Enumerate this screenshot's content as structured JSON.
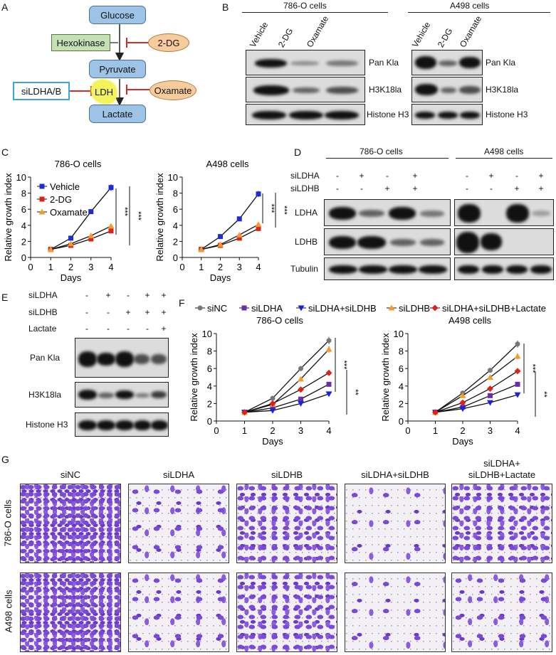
{
  "panels": {
    "A": "A",
    "B": "B",
    "C": "C",
    "D": "D",
    "E": "E",
    "F": "F",
    "G": "G"
  },
  "diagram": {
    "glucose": "Glucose",
    "hexokinase": "Hexokinase",
    "two_dg": "2-DG",
    "pyruvate": "Pyruvate",
    "ldh": "LDH",
    "siLDHAB": "siLDHA/B",
    "oxamate": "Oxamate",
    "lactate": "Lactate"
  },
  "blotB": {
    "cell_786": "786-O cells",
    "cell_a498": "A498 cells",
    "lanes": [
      "Vehicle",
      "2-DG",
      "Oxamate"
    ],
    "rows": [
      "Pan Kla",
      "H3K18la",
      "Histone H3"
    ]
  },
  "blotD": {
    "cell_786": "786-O cells",
    "cell_a498": "A498 cells",
    "cond": [
      "siLDHA",
      "siLDHB"
    ],
    "signs": [
      [
        "-",
        "+",
        "-",
        "+"
      ],
      [
        "-",
        "-",
        "+",
        "+"
      ]
    ],
    "rows": [
      "LDHA",
      "LDHB",
      "Tubulin"
    ]
  },
  "blotE": {
    "cond": [
      "siLDHA",
      "siLDHB",
      "Lactate"
    ],
    "signs": [
      [
        "-",
        "+",
        "-",
        "+",
        "+"
      ],
      [
        "-",
        "-",
        "+",
        "+",
        "+"
      ],
      [
        "-",
        "-",
        "-",
        "-",
        "+"
      ]
    ],
    "rows": [
      "Pan Kla",
      "H3K18la",
      "Histone H3"
    ]
  },
  "micro": {
    "cols": [
      "siNC",
      "siLDHA",
      "siLDHB",
      "siLDHA+siLDHB",
      "siLDHA+\nsiLDHB+Lactate"
    ],
    "rows": [
      "786-O cells",
      "A498 cells"
    ]
  },
  "colors": {
    "Vehicle": "#1f2bd6",
    "2-DG": "#e0201b",
    "Oxamate": "#f29c2b",
    "siNC": "#777777",
    "siLDHA": "#6a2fa8",
    "siLDHA+siLDHB": "#1822e0",
    "siLDHB": "#f29c2b",
    "siLDHA+siLDHB+Lactate": "#e0201b"
  },
  "chart_data": [
    {
      "type": "line",
      "title": "786-O cells",
      "xlabel": "Days",
      "ylabel": "Relative growth index",
      "xlim": [
        0,
        4
      ],
      "ylim": [
        0,
        10
      ],
      "xticks": [
        "0",
        "1",
        "2",
        "3",
        "4"
      ],
      "yticks": [
        "0",
        "2",
        "4",
        "6",
        "8",
        "10"
      ],
      "x": [
        1,
        2,
        3,
        4
      ],
      "legend": "top-left",
      "series": [
        {
          "name": "Vehicle",
          "marker": "square",
          "values": [
            1,
            2.4,
            5.7,
            8.7
          ]
        },
        {
          "name": "2-DG",
          "marker": "square",
          "values": [
            1,
            1.5,
            2.3,
            3.3
          ]
        },
        {
          "name": "Oxamate",
          "marker": "triangle",
          "values": [
            1,
            1.7,
            2.7,
            3.9
          ]
        }
      ],
      "annotations": [
        "***",
        "***"
      ]
    },
    {
      "type": "line",
      "title": "A498 cells",
      "xlabel": "Days",
      "ylabel": "Relative growth index",
      "xlim": [
        0,
        4
      ],
      "ylim": [
        0,
        10
      ],
      "xticks": [
        "0",
        "1",
        "2",
        "3",
        "4"
      ],
      "yticks": [
        "0",
        "2",
        "4",
        "6",
        "8",
        "10"
      ],
      "x": [
        1,
        2,
        3,
        4
      ],
      "series": [
        {
          "name": "Vehicle",
          "marker": "square",
          "values": [
            1,
            2.6,
            4.8,
            7.9
          ]
        },
        {
          "name": "2-DG",
          "marker": "square",
          "values": [
            1,
            1.5,
            2.4,
            3.6
          ]
        },
        {
          "name": "Oxamate",
          "marker": "triangle",
          "values": [
            1,
            1.6,
            2.8,
            4.1
          ]
        }
      ],
      "annotations": [
        "***",
        "***"
      ]
    },
    {
      "type": "line",
      "title": "786-O cells",
      "xlabel": "Days",
      "ylabel": "Relative growth index",
      "xlim": [
        0,
        4
      ],
      "ylim": [
        0,
        10
      ],
      "xticks": [
        "0",
        "1",
        "2",
        "3",
        "4"
      ],
      "yticks": [
        "0",
        "2",
        "4",
        "6",
        "8",
        "10"
      ],
      "x": [
        1,
        2,
        3,
        4
      ],
      "legend": "top",
      "series": [
        {
          "name": "siNC",
          "marker": "circle",
          "values": [
            1,
            2.6,
            6.0,
            9.2
          ]
        },
        {
          "name": "siLDHA",
          "marker": "square",
          "values": [
            1,
            1.5,
            2.5,
            4.2
          ]
        },
        {
          "name": "siLDHA+siLDHB",
          "marker": "down-triangle",
          "values": [
            1,
            1.2,
            2.0,
            3.1
          ]
        },
        {
          "name": "siLDHB",
          "marker": "triangle",
          "values": [
            1,
            1.9,
            4.8,
            8.2
          ]
        },
        {
          "name": "siLDHA+siLDHB+Lactate",
          "marker": "diamond",
          "values": [
            1,
            2.0,
            3.6,
            5.5
          ]
        }
      ],
      "annotations": [
        "***",
        "**"
      ]
    },
    {
      "type": "line",
      "title": "A498 cells",
      "xlabel": "Days",
      "ylabel": "Relative growth index",
      "xlim": [
        0,
        4
      ],
      "ylim": [
        0,
        10
      ],
      "xticks": [
        "0",
        "1",
        "2",
        "3",
        "4"
      ],
      "yticks": [
        "0",
        "2",
        "4",
        "6",
        "8",
        "10"
      ],
      "x": [
        1,
        2,
        3,
        4
      ],
      "series": [
        {
          "name": "siNC",
          "marker": "circle",
          "values": [
            1,
            3.2,
            5.8,
            8.8
          ]
        },
        {
          "name": "siLDHA",
          "marker": "square",
          "values": [
            1,
            1.6,
            2.9,
            4.2
          ]
        },
        {
          "name": "siLDHA+siLDHB",
          "marker": "down-triangle",
          "values": [
            1,
            1.4,
            2.1,
            3.0
          ]
        },
        {
          "name": "siLDHB",
          "marker": "triangle",
          "values": [
            1,
            2.9,
            5.0,
            7.4
          ]
        },
        {
          "name": "siLDHA+siLDHB+Lactate",
          "marker": "diamond",
          "values": [
            1,
            2.1,
            3.7,
            5.7
          ]
        }
      ],
      "annotations": [
        "***",
        "**"
      ]
    }
  ]
}
